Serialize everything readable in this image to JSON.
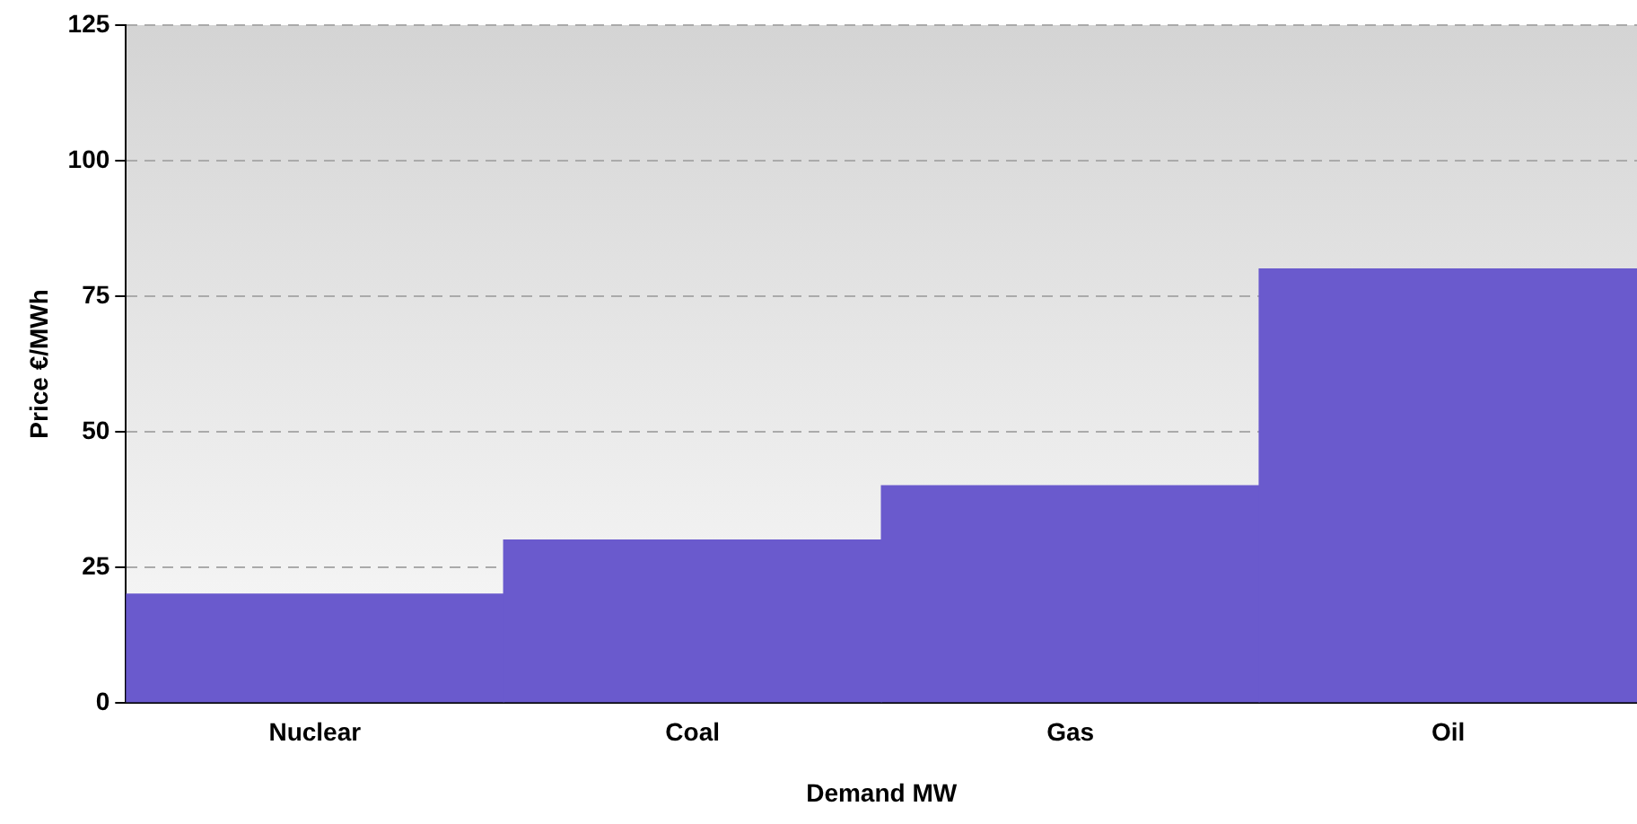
{
  "chart_data": {
    "type": "bar",
    "xlabel": "Demand MW",
    "ylabel": "Price €/MWh",
    "categories": [
      "Nuclear",
      "Coal",
      "Gas",
      "Oil"
    ],
    "values": [
      20,
      30,
      40,
      80
    ],
    "color": "#6a5acd",
    "ylim": [
      0,
      125
    ],
    "yticks": [
      0,
      25,
      50,
      75,
      100,
      125
    ],
    "grid": "y",
    "legend": false
  }
}
